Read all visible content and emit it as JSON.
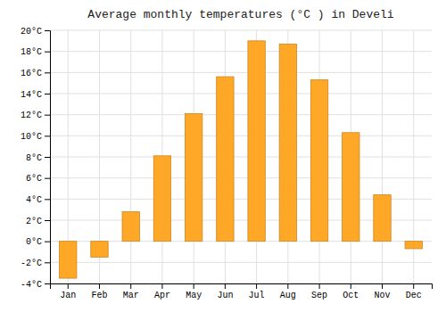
{
  "chart_data": {
    "type": "bar",
    "title": "Average monthly temperatures (°C ) in Develi",
    "categories": [
      "Jan",
      "Feb",
      "Mar",
      "Apr",
      "May",
      "Jun",
      "Jul",
      "Aug",
      "Sep",
      "Oct",
      "Nov",
      "Dec"
    ],
    "values": [
      -3.5,
      -1.5,
      2.8,
      8.1,
      12.1,
      15.6,
      19.0,
      18.7,
      15.3,
      10.3,
      4.4,
      -0.7
    ],
    "color": "#FFA726",
    "ylim": [
      -4,
      20
    ],
    "yticks": [
      {
        "value": -4,
        "label": "-4°C"
      },
      {
        "value": -2,
        "label": "-2°C"
      },
      {
        "value": 0,
        "label": "0°C"
      },
      {
        "value": 2,
        "label": "2°C"
      },
      {
        "value": 4,
        "label": "4°C"
      },
      {
        "value": 6,
        "label": "6°C"
      },
      {
        "value": 8,
        "label": "8°C"
      },
      {
        "value": 10,
        "label": "10°C"
      },
      {
        "value": 12,
        "label": "12°C"
      },
      {
        "value": 14,
        "label": "14°C"
      },
      {
        "value": 16,
        "label": "16°C"
      },
      {
        "value": 18,
        "label": "18°C"
      },
      {
        "value": 20,
        "label": "20°C"
      }
    ],
    "grid": true
  }
}
